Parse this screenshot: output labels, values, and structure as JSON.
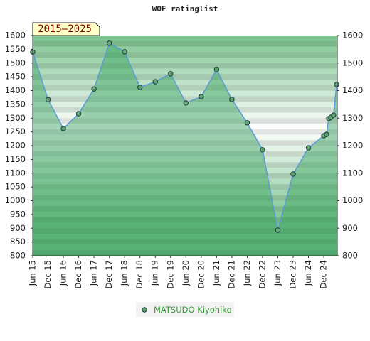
{
  "chart_data": {
    "type": "line",
    "title": "WOF ratinglist",
    "annotation": "2015–2025",
    "x": [
      2015.5,
      2016.0,
      2016.5,
      2017.0,
      2017.5,
      2018.0,
      2018.5,
      2019.0,
      2019.5,
      2020.0,
      2020.5,
      2021.0,
      2021.5,
      2022.0,
      2022.5,
      2023.0,
      2023.5,
      2024.0,
      2024.5,
      2025.0,
      2025.09,
      2025.16,
      2025.23,
      2025.32,
      2025.42
    ],
    "series": [
      {
        "name": "MATSUDO Kiyohiko",
        "color": "#5b9bd5",
        "marker_color": "#5aa86a",
        "values": [
          1540,
          1367,
          1262,
          1316,
          1406,
          1572,
          1541,
          1412,
          1432,
          1461,
          1355,
          1378,
          1476,
          1368,
          1283,
          1185,
          893,
          1097,
          1192,
          1236,
          1241,
          1298,
          1303,
          1311,
          1422
        ]
      }
    ],
    "xlim": [
      2015.5,
      2025.44
    ],
    "xticks": [
      {
        "value": 2015.5,
        "label": "Jun 15"
      },
      {
        "value": 2016.0,
        "label": "Dec 15"
      },
      {
        "value": 2016.5,
        "label": "Jun 16"
      },
      {
        "value": 2017.0,
        "label": "Dec 16"
      },
      {
        "value": 2017.5,
        "label": "Jun 17"
      },
      {
        "value": 2018.0,
        "label": "Dec 17"
      },
      {
        "value": 2018.5,
        "label": "Jun 18"
      },
      {
        "value": 2019.0,
        "label": "Dec 18"
      },
      {
        "value": 2019.5,
        "label": "Jun 19"
      },
      {
        "value": 2020.0,
        "label": "Dec 19"
      },
      {
        "value": 2020.5,
        "label": "Jun 20"
      },
      {
        "value": 2021.0,
        "label": "Dec 20"
      },
      {
        "value": 2021.5,
        "label": "Jun 21"
      },
      {
        "value": 2022.0,
        "label": "Dec 21"
      },
      {
        "value": 2022.5,
        "label": "Jun 22"
      },
      {
        "value": 2023.0,
        "label": "Dec 22"
      },
      {
        "value": 2023.5,
        "label": "Jun 23"
      },
      {
        "value": 2024.0,
        "label": "Dec 23"
      },
      {
        "value": 2024.5,
        "label": "Jun 24"
      },
      {
        "value": 2025.0,
        "label": "Dec 24"
      }
    ],
    "ylim": [
      800,
      1600
    ],
    "yticks": [
      800,
      850,
      900,
      950,
      1000,
      1050,
      1100,
      1150,
      1200,
      1250,
      1300,
      1350,
      1400,
      1450,
      1500,
      1550,
      1600
    ],
    "y2lim": [
      800,
      1600
    ],
    "y2ticks": [
      800,
      900,
      1000,
      1100,
      1200,
      1300,
      1400,
      1500,
      1600
    ]
  }
}
